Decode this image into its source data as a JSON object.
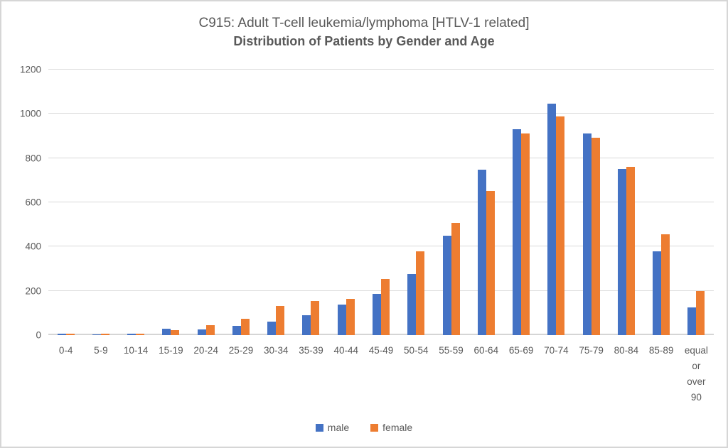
{
  "title": "C915: Adult T-cell leukemia/lymphoma [HTLV-1 related]",
  "subtitle": "Distribution of Patients by Gender and Age",
  "colors": {
    "male": "#4472C4",
    "female": "#ED7D31",
    "text": "#595959",
    "gridline": "#D9D9D9",
    "frame_border": "#D6D6D6"
  },
  "legend": {
    "male_label": "male",
    "female_label": "female"
  },
  "chart_data": {
    "type": "bar",
    "title": "C915: Adult T-cell leukemia/lymphoma [HTLV-1 related]",
    "subtitle": "Distribution of Patients by Gender and Age",
    "categories": [
      "0-4",
      "5-9",
      "10-14",
      "15-19",
      "20-24",
      "25-29",
      "30-34",
      "35-39",
      "40-44",
      "45-49",
      "50-54",
      "55-59",
      "60-64",
      "65-69",
      "70-74",
      "75-79",
      "80-84",
      "85-89",
      "equal or over 90"
    ],
    "series": [
      {
        "name": "male",
        "color": "#4472C4",
        "values": [
          8,
          2,
          8,
          30,
          25,
          42,
          62,
          91,
          137,
          186,
          276,
          450,
          747,
          931,
          1046,
          911,
          752,
          380,
          124
        ]
      },
      {
        "name": "female",
        "color": "#ED7D31",
        "values": [
          8,
          8,
          8,
          22,
          45,
          73,
          131,
          153,
          164,
          252,
          378,
          507,
          652,
          911,
          988,
          892,
          760,
          457,
          200
        ]
      }
    ],
    "xlabel": "",
    "ylabel": "",
    "ylim": [
      0,
      1200
    ],
    "yticks": [
      0,
      200,
      400,
      600,
      800,
      1000,
      1200
    ],
    "grid": true,
    "legend_position": "bottom"
  }
}
